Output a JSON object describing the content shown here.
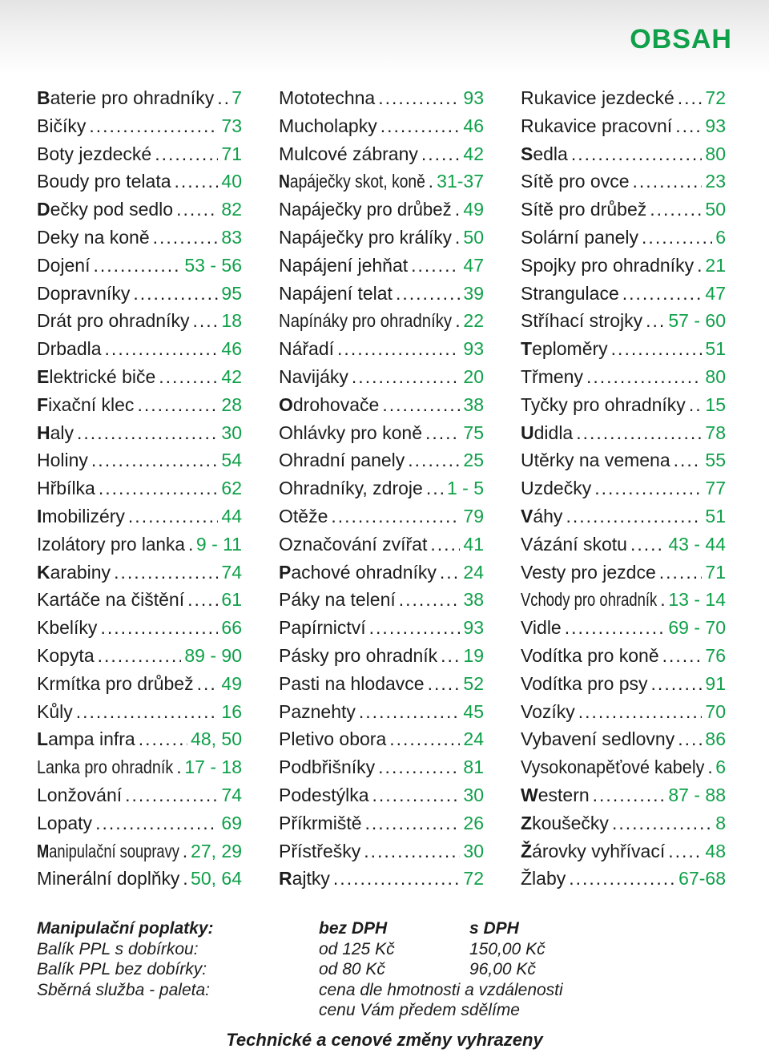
{
  "page": {
    "title": "OBSAH"
  },
  "index": {
    "columns": [
      [
        {
          "label": "Baterie pro ohradníky",
          "page": "7",
          "bold_initial": true
        },
        {
          "label": "Bičíky",
          "page": "73",
          "bold_initial": false
        },
        {
          "label": "Boty jezdecké",
          "page": "71",
          "bold_initial": false
        },
        {
          "label": "Boudy pro telata",
          "page": "40",
          "bold_initial": false
        },
        {
          "label": "Dečky pod sedlo",
          "page": "82",
          "bold_initial": true
        },
        {
          "label": "Deky na koně",
          "page": "83",
          "bold_initial": false
        },
        {
          "label": "Dojení",
          "page": "53 - 56",
          "bold_initial": false
        },
        {
          "label": "Dopravníky",
          "page": "95",
          "bold_initial": false
        },
        {
          "label": "Drát pro ohradníky",
          "page": "18",
          "bold_initial": false
        },
        {
          "label": "Drbadla",
          "page": "46",
          "bold_initial": false
        },
        {
          "label": "Elektrické biče",
          "page": "42",
          "bold_initial": true
        },
        {
          "label": "Fixační klec",
          "page": "28",
          "bold_initial": true
        },
        {
          "label": "Haly",
          "page": "30",
          "bold_initial": true
        },
        {
          "label": "Holiny",
          "page": "54",
          "bold_initial": false
        },
        {
          "label": "Hřbílka",
          "page": "62",
          "bold_initial": false
        },
        {
          "label": "Imobilizéry",
          "page": "44",
          "bold_initial": true
        },
        {
          "label": "Izolátory pro lanka",
          "page": "9 - 11",
          "bold_initial": false
        },
        {
          "label": "Karabiny",
          "page": "74",
          "bold_initial": true
        },
        {
          "label": "Kartáče na čištění",
          "page": "61",
          "bold_initial": false
        },
        {
          "label": "Kbelíky",
          "page": "66",
          "bold_initial": false
        },
        {
          "label": "Kopyta",
          "page": "89 - 90",
          "bold_initial": false
        },
        {
          "label": "Krmítka pro drůbež",
          "page": "49",
          "bold_initial": false
        },
        {
          "label": "Kůly",
          "page": "16",
          "bold_initial": false
        },
        {
          "label": "Lampa infra",
          "page": "48, 50",
          "bold_initial": true
        },
        {
          "label": "Lanka pro ohradník",
          "page": "17 - 18",
          "bold_initial": false
        },
        {
          "label": "Lonžování",
          "page": "74",
          "bold_initial": false
        },
        {
          "label": "Lopaty",
          "page": "69",
          "bold_initial": false
        },
        {
          "label": "Manipulační soupravy",
          "page": "27, 29",
          "bold_initial": true
        },
        {
          "label": "Minerální doplňky",
          "page": "50, 64",
          "bold_initial": false
        }
      ],
      [
        {
          "label": "Mototechna",
          "page": "93",
          "bold_initial": false
        },
        {
          "label": "Mucholapky",
          "page": "46",
          "bold_initial": false
        },
        {
          "label": "Mulcové zábrany",
          "page": "42",
          "bold_initial": false
        },
        {
          "label": "Napáječky skot, koně",
          "page": "31-37",
          "bold_initial": true
        },
        {
          "label": "Napáječky pro drůbež",
          "page": "49",
          "bold_initial": false
        },
        {
          "label": "Napáječky pro králíky",
          "page": "50",
          "bold_initial": false
        },
        {
          "label": "Napájení jehňat",
          "page": "47",
          "bold_initial": false
        },
        {
          "label": "Napájení telat",
          "page": "39",
          "bold_initial": false
        },
        {
          "label": "Napínáky pro ohradníky",
          "page": "22",
          "bold_initial": false
        },
        {
          "label": "Nářadí",
          "page": "93",
          "bold_initial": false
        },
        {
          "label": "Navijáky",
          "page": "20",
          "bold_initial": false
        },
        {
          "label": "Odrohovače",
          "page": "38",
          "bold_initial": true
        },
        {
          "label": "Ohlávky pro koně",
          "page": "75",
          "bold_initial": false
        },
        {
          "label": "Ohradní panely",
          "page": "25",
          "bold_initial": false
        },
        {
          "label": "Ohradníky, zdroje",
          "page": "1 - 5",
          "bold_initial": false
        },
        {
          "label": "Otěže",
          "page": "79",
          "bold_initial": false
        },
        {
          "label": "Označování zvířat",
          "page": "41",
          "bold_initial": false
        },
        {
          "label": "Pachové ohradníky",
          "page": "24",
          "bold_initial": true
        },
        {
          "label": "Páky na telení",
          "page": "38",
          "bold_initial": false
        },
        {
          "label": "Papírnictví",
          "page": "93",
          "bold_initial": false
        },
        {
          "label": "Pásky pro ohradník",
          "page": "19",
          "bold_initial": false
        },
        {
          "label": "Pasti na hlodavce",
          "page": "52",
          "bold_initial": false
        },
        {
          "label": "Paznehty",
          "page": "45",
          "bold_initial": false
        },
        {
          "label": "Pletivo obora",
          "page": "24",
          "bold_initial": false
        },
        {
          "label": "Podbřišníky",
          "page": "81",
          "bold_initial": false
        },
        {
          "label": "Podestýlka",
          "page": "30",
          "bold_initial": false
        },
        {
          "label": "Příkrmiště",
          "page": "26",
          "bold_initial": false
        },
        {
          "label": "Přístřešky",
          "page": "30",
          "bold_initial": false
        },
        {
          "label": "Rajtky",
          "page": "72",
          "bold_initial": true
        }
      ],
      [
        {
          "label": "Rukavice jezdecké",
          "page": "72",
          "bold_initial": false
        },
        {
          "label": "Rukavice pracovní",
          "page": "93",
          "bold_initial": false
        },
        {
          "label": "Sedla",
          "page": "80",
          "bold_initial": true
        },
        {
          "label": "Sítě pro ovce",
          "page": "23",
          "bold_initial": false
        },
        {
          "label": "Sítě pro drůbež",
          "page": "50",
          "bold_initial": false
        },
        {
          "label": "Solární panely",
          "page": "6",
          "bold_initial": false
        },
        {
          "label": "Spojky pro ohradníky",
          "page": "21",
          "bold_initial": false
        },
        {
          "label": "Strangulace",
          "page": "47",
          "bold_initial": false
        },
        {
          "label": "Stříhací strojky",
          "page": "57 - 60",
          "bold_initial": false
        },
        {
          "label": "Teploměry",
          "page": "51",
          "bold_initial": true
        },
        {
          "label": "Třmeny",
          "page": "80",
          "bold_initial": false
        },
        {
          "label": "Tyčky pro ohradníky",
          "page": "15",
          "bold_initial": false
        },
        {
          "label": "Udidla",
          "page": "78",
          "bold_initial": true
        },
        {
          "label": "Utěrky na vemena",
          "page": "55",
          "bold_initial": false
        },
        {
          "label": "Uzdečky",
          "page": "77",
          "bold_initial": false
        },
        {
          "label": "Váhy",
          "page": "51",
          "bold_initial": true
        },
        {
          "label": "Vázání skotu",
          "page": "43 - 44",
          "bold_initial": false
        },
        {
          "label": "Vesty pro jezdce",
          "page": "71",
          "bold_initial": false
        },
        {
          "label": "Vchody pro ohradník",
          "page": "13 - 14",
          "bold_initial": false
        },
        {
          "label": "Vidle",
          "page": "69 - 70",
          "bold_initial": false
        },
        {
          "label": "Vodítka pro koně",
          "page": "76",
          "bold_initial": false
        },
        {
          "label": "Vodítka pro psy",
          "page": "91",
          "bold_initial": false
        },
        {
          "label": "Vozíky",
          "page": "70",
          "bold_initial": false
        },
        {
          "label": "Vybavení sedlovny",
          "page": "86",
          "bold_initial": false
        },
        {
          "label": "Vysokonapěťové kabely",
          "page": "6",
          "bold_initial": false
        },
        {
          "label": "Western",
          "page": "87 - 88",
          "bold_initial": true
        },
        {
          "label": "Zkoušečky",
          "page": "8",
          "bold_initial": true
        },
        {
          "label": "Žárovky vyhřívací",
          "page": "48",
          "bold_initial": true
        },
        {
          "label": "Žlaby",
          "page": "67-68",
          "bold_initial": false
        }
      ]
    ]
  },
  "fees": {
    "heading": "Manipulační poplatky:",
    "col_without_vat": "bez DPH",
    "col_with_vat": "s DPH",
    "rows": [
      {
        "label": "Balík PPL s dobírkou:",
        "without_vat": "od 125 Kč",
        "with_vat": "150,00 Kč"
      },
      {
        "label": "Balík PPL bez dobírky:",
        "without_vat": "od 80 Kč",
        "with_vat": "96,00 Kč"
      },
      {
        "label": "Sběrná služba - paleta:",
        "without_vat": "cena dle hmotnosti a vzdálenosti",
        "with_vat": ""
      }
    ],
    "extra_line": "cenu Vám předem sdělíme",
    "notice": "Technické a cenové změny vyhrazeny"
  }
}
